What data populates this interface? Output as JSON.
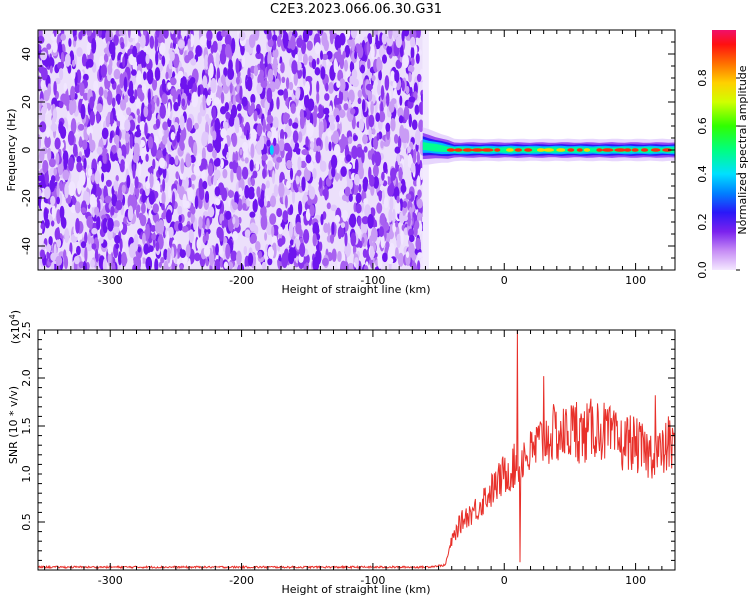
{
  "title": "C2E3.2023.066.06.30.G31",
  "chart_data": [
    {
      "type": "heatmap",
      "xlabel": "Height of straight line (km)",
      "ylabel": "Frequency (Hz)",
      "xlim": [
        -355,
        130
      ],
      "ylim": [
        -50,
        50
      ],
      "x_ticks": [
        -300,
        -200,
        -100,
        0,
        100
      ],
      "y_ticks": [
        -40,
        -20,
        0,
        20,
        40
      ],
      "noise_region_x": [
        -355,
        -62
      ],
      "signal_band": {
        "x_start": -62,
        "x_end": 130,
        "center_frequency_hz": 0,
        "peak_amplitude": 0.9
      },
      "colorbar": {
        "label": "Normalized spectral amplitude",
        "range": [
          0,
          1
        ],
        "ticks": [
          0.0,
          0.2,
          0.4,
          0.6,
          0.8
        ]
      }
    },
    {
      "type": "line",
      "xlabel": "Height of straight line (km)",
      "ylabel": "SNR (10 * v/v)",
      "y_multiplier": "(x10",
      "y_exponent": "4",
      "xlim": [
        -355,
        130
      ],
      "ylim": [
        0,
        2.5
      ],
      "x_ticks": [
        -300,
        -200,
        -100,
        0,
        100
      ],
      "y_ticks": [
        0.5,
        1.0,
        1.5,
        2.0,
        2.5
      ],
      "series": [
        {
          "color": "#e8302a",
          "x": [
            -355,
            -300,
            -250,
            -200,
            -150,
            -100,
            -60,
            -45,
            -40,
            -35,
            -30,
            -25,
            -20,
            -15,
            -10,
            -5,
            0,
            5,
            10,
            15,
            20,
            25,
            30,
            35,
            40,
            45,
            50,
            55,
            60,
            65,
            70,
            75,
            80,
            85,
            90,
            95,
            100,
            105,
            110,
            115,
            120,
            125,
            130
          ],
          "y": [
            0.03,
            0.03,
            0.03,
            0.03,
            0.03,
            0.03,
            0.03,
            0.05,
            0.3,
            0.45,
            0.55,
            0.6,
            0.65,
            0.75,
            0.82,
            0.9,
            1.0,
            1.05,
            1.1,
            1.2,
            1.2,
            1.3,
            1.35,
            1.4,
            1.42,
            1.4,
            1.45,
            1.45,
            1.4,
            1.45,
            1.5,
            1.45,
            1.4,
            1.35,
            1.3,
            1.35,
            1.3,
            1.25,
            1.2,
            1.25,
            1.2,
            1.3,
            1.25
          ],
          "spikes": [
            [
              10,
              2.5
            ],
            [
              12,
              0.08
            ],
            [
              30,
              2.02
            ],
            [
              55,
              1.75
            ],
            [
              115,
              1.82
            ],
            [
              125,
              1.6
            ]
          ]
        }
      ]
    }
  ]
}
